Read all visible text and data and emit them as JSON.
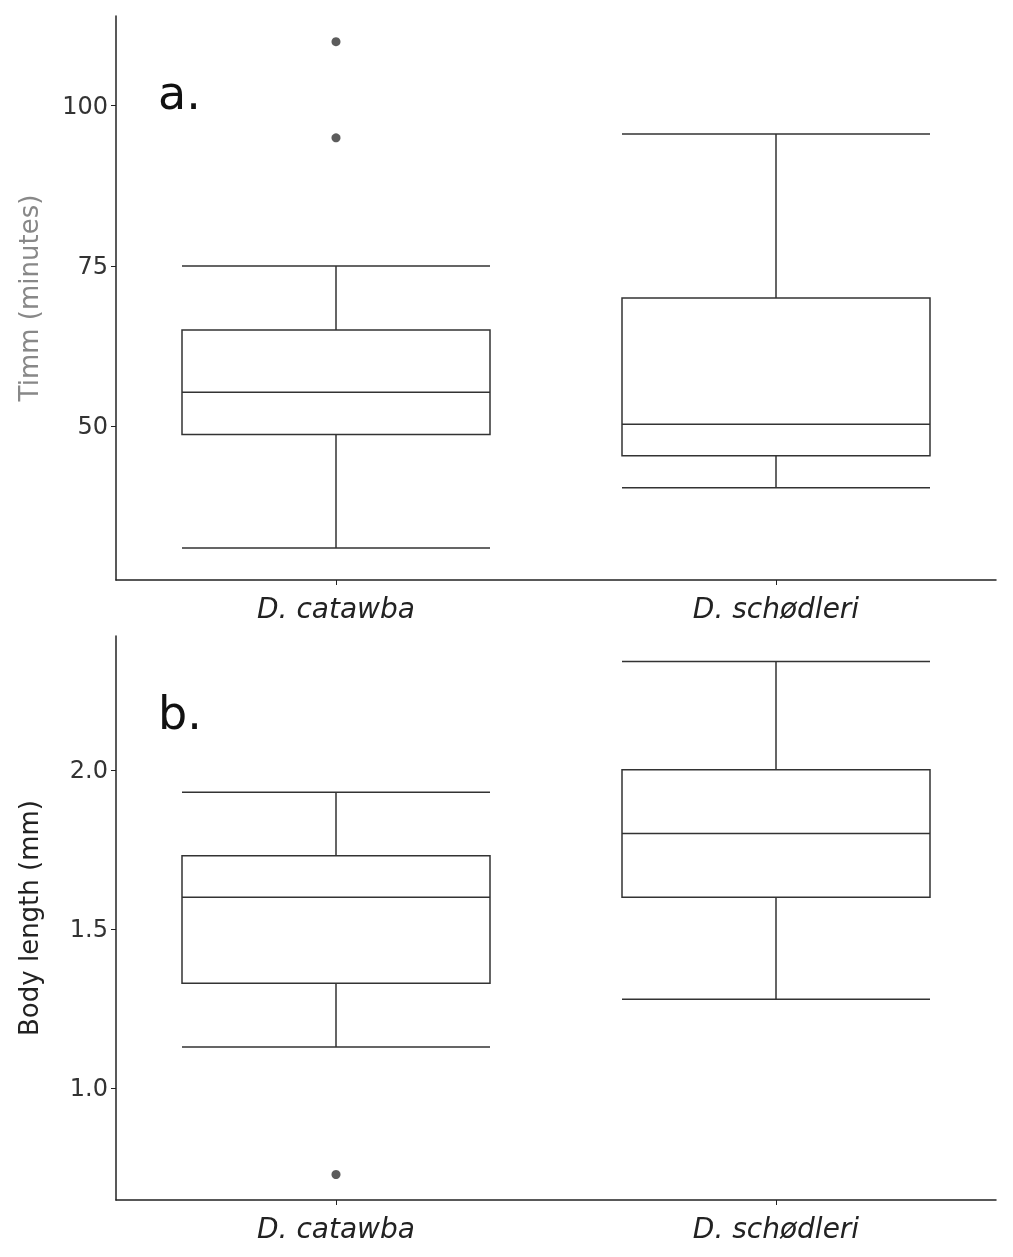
{
  "chart_data": [
    {
      "type": "box",
      "annotations": [
        "a."
      ],
      "ylabel": "Timm (minutes)",
      "categories": [
        "D. catawba",
        "D. schødleri"
      ],
      "ylim": [
        26,
        114
      ],
      "yticks": [
        50,
        75,
        100
      ],
      "boxes": [
        {
          "low": 31,
          "q1": 48.7,
          "median": 55.3,
          "q3": 65,
          "high": 75,
          "outliers": [
            95,
            110
          ]
        },
        {
          "low": 40.4,
          "q1": 45.4,
          "median": 50.3,
          "q3": 70,
          "high": 95.6
        }
      ]
    },
    {
      "type": "box",
      "annotations": [
        "b."
      ],
      "ylabel": "Body length (mm)",
      "categories": [
        "D. catawba",
        "D. schødleri"
      ],
      "ylim": [
        0.65,
        2.42
      ],
      "yticks": [
        {
          "value": 1,
          "label": "1.0"
        },
        1.5,
        {
          "value": 2,
          "label": "2.0"
        }
      ],
      "boxes": [
        {
          "low": 1.13,
          "q1": 1.33,
          "median": 1.6,
          "q3": 1.73,
          "high": 1.93,
          "outliers": [
            0.73
          ]
        },
        {
          "low": 1.28,
          "q1": 1.6,
          "median": 1.8,
          "q3": 2.0,
          "high": 2.34
        }
      ]
    }
  ]
}
